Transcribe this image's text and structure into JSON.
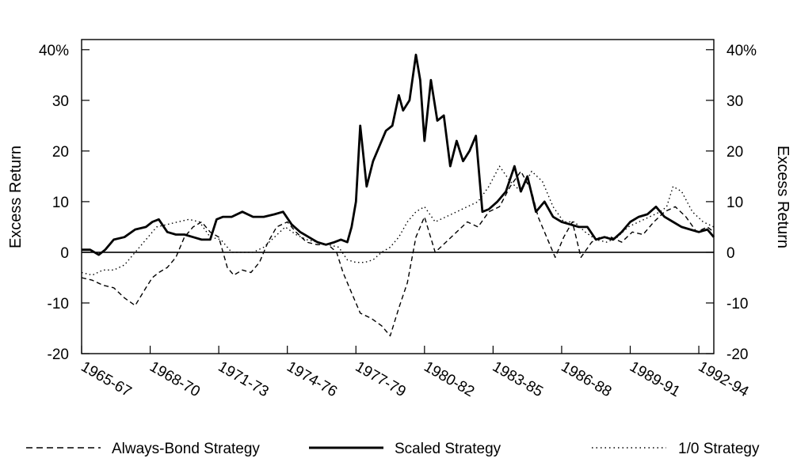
{
  "chart_data": {
    "type": "line",
    "title": "",
    "ylabel_left": "Excess Return",
    "ylabel_right": "Excess Return",
    "ylim": [
      -20,
      42
    ],
    "yticks": [
      -20,
      -10,
      0,
      10,
      20,
      30,
      40
    ],
    "ytick_labels_left": [
      "-20",
      "-10",
      "0",
      "10",
      "20",
      "30",
      "40%"
    ],
    "ytick_labels_right": [
      "-20",
      "-10",
      "0",
      "10",
      "20",
      "30",
      "40%"
    ],
    "xlim": [
      1965,
      1994.5
    ],
    "xticks": [
      1965,
      1968.2,
      1971.4,
      1974.6,
      1977.8,
      1981,
      1984.2,
      1987.4,
      1990.6,
      1993.8
    ],
    "xtick_labels": [
      "1965-67",
      "1968-70",
      "1971-73",
      "1974-76",
      "1977-79",
      "1980-82",
      "1983-85",
      "1986-88",
      "1989-91",
      "1992-94"
    ],
    "legend": [
      "Always-Bond Strategy",
      "Scaled Strategy",
      "1/0 Strategy"
    ],
    "series": [
      {
        "name": "Always-Bond Strategy",
        "style": "dashed",
        "x": [
          1965.0,
          1965.5,
          1966.0,
          1966.5,
          1967.0,
          1967.5,
          1968.0,
          1968.3,
          1968.6,
          1969.0,
          1969.4,
          1969.8,
          1970.2,
          1970.6,
          1971.0,
          1971.4,
          1971.8,
          1972.1,
          1972.5,
          1972.9,
          1973.3,
          1973.7,
          1974.1,
          1974.6,
          1975.0,
          1975.5,
          1976.0,
          1976.5,
          1976.9,
          1977.2,
          1977.6,
          1978.0,
          1978.5,
          1979.0,
          1979.4,
          1979.8,
          1980.2,
          1980.6,
          1981.0,
          1981.5,
          1982.0,
          1982.5,
          1983.0,
          1983.5,
          1984.0,
          1984.5,
          1985.0,
          1985.5,
          1986.0,
          1986.3,
          1986.7,
          1987.1,
          1987.5,
          1987.9,
          1988.3,
          1988.8,
          1989.2,
          1989.7,
          1990.2,
          1990.7,
          1991.2,
          1991.7,
          1992.2,
          1992.7,
          1993.2,
          1993.7,
          1994.2,
          1994.5
        ],
        "values": [
          -5,
          -5.5,
          -6.5,
          -7,
          -9,
          -10.5,
          -7,
          -5,
          -4,
          -3,
          -1,
          3,
          5,
          6,
          4,
          3,
          -3,
          -4.5,
          -3.5,
          -4,
          -2,
          2,
          5,
          6,
          4,
          2,
          1.5,
          1.5,
          0,
          -4,
          -8,
          -12,
          -13,
          -14.5,
          -16.5,
          -11,
          -6,
          3,
          7,
          0,
          2,
          4,
          6,
          5,
          8,
          9,
          13,
          16,
          12,
          7,
          3,
          -1,
          3,
          6,
          -1,
          2,
          3,
          3,
          2,
          4,
          3.5,
          6,
          8,
          9,
          7,
          4,
          5,
          4
        ]
      },
      {
        "name": "Scaled Strategy",
        "style": "solid",
        "x": [
          1965.0,
          1965.4,
          1965.8,
          1966.1,
          1966.5,
          1967.0,
          1967.5,
          1968.0,
          1968.3,
          1968.6,
          1969.0,
          1969.4,
          1969.8,
          1970.2,
          1970.6,
          1971.0,
          1971.3,
          1971.6,
          1972.0,
          1972.5,
          1973.0,
          1973.5,
          1974.0,
          1974.4,
          1974.8,
          1975.2,
          1975.6,
          1976.0,
          1976.4,
          1976.8,
          1977.1,
          1977.4,
          1977.6,
          1977.8,
          1978.0,
          1978.3,
          1978.6,
          1978.9,
          1979.2,
          1979.5,
          1979.8,
          1980.0,
          1980.3,
          1980.6,
          1980.8,
          1981.0,
          1981.3,
          1981.6,
          1981.9,
          1982.2,
          1982.5,
          1982.8,
          1983.1,
          1983.4,
          1983.7,
          1984.0,
          1984.4,
          1984.8,
          1985.2,
          1985.5,
          1985.8,
          1986.2,
          1986.6,
          1987.0,
          1987.4,
          1987.8,
          1988.2,
          1988.6,
          1989.0,
          1989.4,
          1989.8,
          1990.2,
          1990.6,
          1991.0,
          1991.4,
          1991.8,
          1992.2,
          1992.6,
          1993.0,
          1993.4,
          1993.8,
          1994.2,
          1994.5
        ],
        "values": [
          0.5,
          0.5,
          -0.5,
          0.5,
          2.5,
          3,
          4.5,
          5,
          6,
          6.5,
          4,
          3.5,
          3.5,
          3,
          2.5,
          2.5,
          6.5,
          7,
          7,
          8,
          7,
          7,
          7.5,
          8,
          5.5,
          4,
          3,
          2,
          1.5,
          2,
          2.5,
          2,
          5,
          10,
          25,
          13,
          18,
          21,
          24,
          25,
          31,
          28,
          30,
          39,
          34,
          22,
          34,
          26,
          27,
          17,
          22,
          18,
          20,
          23,
          8,
          8.5,
          10,
          12,
          17,
          12,
          15,
          8,
          10,
          7,
          6,
          5.5,
          5,
          5,
          2.5,
          3,
          2.5,
          4,
          6,
          7,
          7.5,
          9,
          7,
          6,
          5,
          4.5,
          4,
          4.5,
          3
        ]
      },
      {
        "name": "1/0 Strategy",
        "style": "dotted",
        "x": [
          1965.0,
          1965.5,
          1966.0,
          1966.5,
          1967.0,
          1967.5,
          1968.0,
          1968.5,
          1969.0,
          1969.5,
          1970.0,
          1970.5,
          1971.0,
          1971.5,
          1972.0,
          1972.5,
          1973.0,
          1973.5,
          1974.0,
          1974.5,
          1975.0,
          1975.5,
          1976.0,
          1976.5,
          1977.0,
          1977.4,
          1977.8,
          1978.2,
          1978.6,
          1979.0,
          1979.4,
          1979.8,
          1980.2,
          1980.6,
          1981.0,
          1981.5,
          1982.0,
          1982.5,
          1983.0,
          1983.5,
          1984.0,
          1984.5,
          1985.0,
          1985.5,
          1986.0,
          1986.5,
          1987.0,
          1987.5,
          1988.0,
          1988.5,
          1989.0,
          1989.5,
          1990.0,
          1990.5,
          1991.0,
          1991.5,
          1992.0,
          1992.3,
          1992.6,
          1993.0,
          1993.5,
          1994.0,
          1994.5
        ],
        "values": [
          -4,
          -4.5,
          -3.5,
          -3.5,
          -2.5,
          0,
          2.5,
          5,
          5.5,
          6,
          6.5,
          6,
          3,
          2.5,
          0,
          0,
          0,
          1,
          3,
          5,
          3.5,
          2.5,
          2,
          1.5,
          1,
          -1.5,
          -2,
          -2,
          -1.5,
          0,
          1,
          3,
          6,
          8,
          9,
          6,
          7,
          8,
          9,
          10,
          13,
          17,
          14,
          12,
          16,
          14,
          9,
          6,
          6,
          4,
          2.5,
          2,
          3,
          5,
          6,
          7,
          8,
          9,
          13,
          12,
          8,
          6,
          5
        ]
      }
    ]
  }
}
